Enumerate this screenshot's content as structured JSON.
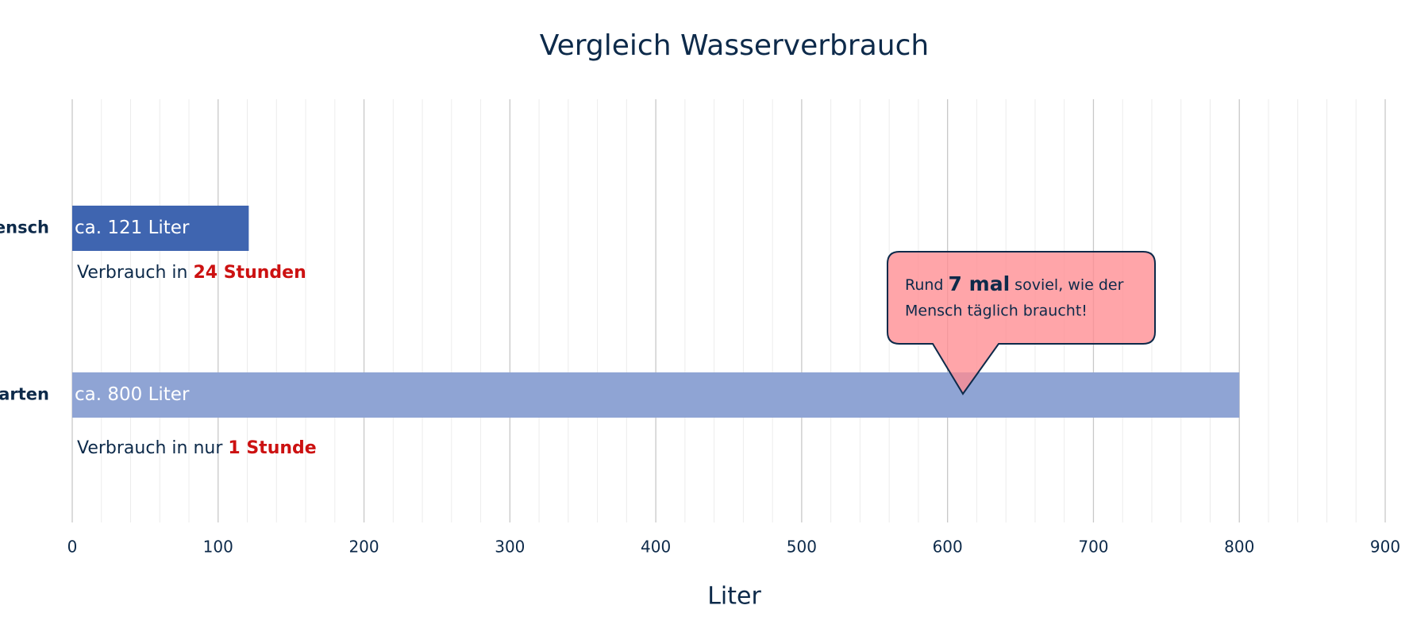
{
  "chart_data": {
    "type": "hbar",
    "title": "Vergleich Wasserverbrauch",
    "categories": [
      "ensch",
      "arten"
    ],
    "values": [
      121,
      800
    ],
    "value_labels": [
      "ca. 121 Liter",
      "ca. 800 Liter"
    ],
    "colors": [
      "#3f65b0",
      "#8fa4d4"
    ],
    "xlabel": "Liter",
    "xlim": [
      0,
      900
    ],
    "xticks": [
      0,
      100,
      200,
      300,
      400,
      500,
      600,
      700,
      800,
      900
    ],
    "xminorticks": [
      20,
      40,
      60,
      80,
      120,
      140,
      160,
      180,
      220,
      240,
      260,
      280,
      320,
      340,
      360,
      380,
      420,
      440,
      460,
      480,
      520,
      540,
      560,
      580,
      620,
      640,
      660,
      680,
      720,
      740,
      760,
      780,
      820,
      840,
      860,
      880
    ],
    "grid": true,
    "annotations": [
      {
        "text": "Verbrauch in ",
        "emphasis": "24 Stunden"
      },
      {
        "text": "Verbrauch in nur ",
        "emphasis": "1 Stunde"
      }
    ],
    "callout": {
      "before": "Rund ",
      "emphasis": "7 mal",
      "after": " soviel, wie der",
      "line2": "Mensch täglich braucht!"
    }
  }
}
